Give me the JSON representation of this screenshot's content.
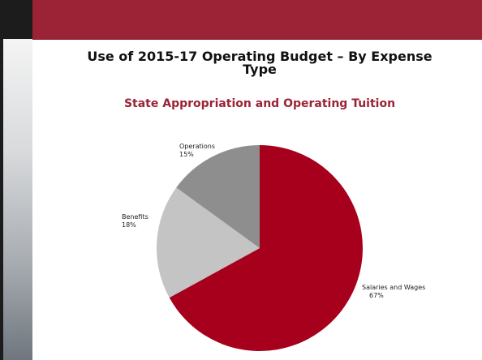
{
  "slide": {
    "title_line1": "Use of 2015-17 Operating Budget – By Expense",
    "title_line2": "Type",
    "subtitle": "State Appropriation and Operating Tuition"
  },
  "colors": {
    "accent": "#9b2335",
    "salaries": "#a6001c",
    "benefits": "#c4c4c4",
    "operations": "#8e8e8e"
  },
  "chart_data": {
    "type": "pie",
    "categories": [
      "Salaries and Wages",
      "Benefits",
      "Operations"
    ],
    "values": [
      67,
      18,
      15
    ],
    "labels": [
      "67%",
      "18%",
      "15%"
    ],
    "title": "Use of 2015-17 Operating Budget – By Expense Type",
    "subtitle": "State Appropriation and Operating Tuition"
  }
}
